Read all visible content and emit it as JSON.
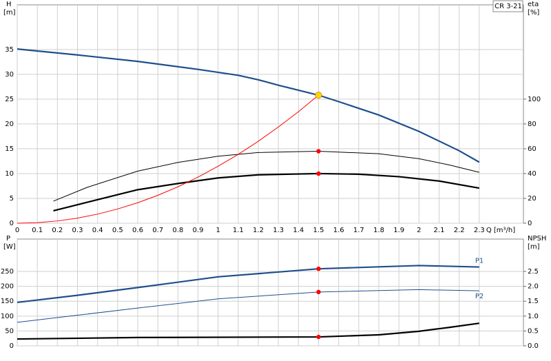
{
  "chart_data": [
    {
      "type": "line",
      "title": "CR 3-21",
      "ylabel": "H",
      "yunit": "[m]",
      "y2label": "eta",
      "y2unit": "[%]",
      "xlabel": "Q [m³/h]",
      "xlim": [
        0,
        2.52
      ],
      "xticks": [
        0,
        0.1,
        0.2,
        0.3,
        0.4,
        0.5,
        0.6,
        0.7,
        0.8,
        0.9,
        1.0,
        1.1,
        1.2,
        1.3,
        1.4,
        1.5,
        1.6,
        1.7,
        1.8,
        1.9,
        2.0,
        2.1,
        2.2,
        2.3
      ],
      "ylim": [
        0,
        44
      ],
      "yticks": [
        0,
        5,
        10,
        15,
        20,
        25,
        30,
        35
      ],
      "y2lim": [
        0,
        176
      ],
      "y2ticks": [
        0,
        20,
        40,
        60,
        80,
        100
      ],
      "grid": true,
      "series": [
        {
          "color": "#1f4e8c",
          "style": "bold",
          "x": [
            0,
            0.3,
            0.6,
            0.9,
            1.1,
            1.2,
            1.3,
            1.4,
            1.5,
            1.6,
            1.8,
            2.0,
            2.2,
            2.3
          ],
          "values": [
            35.1,
            33.9,
            32.6,
            31.0,
            29.8,
            28.9,
            27.8,
            26.8,
            25.8,
            24.5,
            21.8,
            18.5,
            14.6,
            12.3
          ]
        },
        {
          "color": "#000000",
          "style": "thin",
          "axis": "y2",
          "x": [
            0.18,
            0.35,
            0.6,
            0.8,
            1.0,
            1.2,
            1.5,
            1.8,
            2.0,
            2.15,
            2.3
          ],
          "values": [
            17.8,
            29,
            42,
            49,
            54,
            57,
            58,
            56,
            52,
            47,
            41
          ]
        },
        {
          "color": "#000000",
          "style": "bold",
          "axis": "y2",
          "x": [
            0.18,
            0.4,
            0.6,
            0.8,
            1.0,
            1.2,
            1.5,
            1.7,
            1.9,
            2.1,
            2.3
          ],
          "values": [
            10,
            19,
            27,
            32,
            36.5,
            39,
            40,
            39.5,
            37.5,
            34,
            28.3
          ]
        },
        {
          "color": "#ff0000",
          "style": "thin",
          "x": [
            0,
            0.1,
            0.2,
            0.3,
            0.4,
            0.5,
            0.6,
            0.7,
            0.8,
            0.9,
            1.0,
            1.1,
            1.2,
            1.3,
            1.4,
            1.5
          ],
          "values": [
            0,
            0.11,
            0.46,
            1.03,
            1.83,
            2.87,
            4.13,
            5.62,
            7.34,
            9.29,
            11.47,
            13.87,
            16.51,
            19.38,
            22.47,
            25.8
          ]
        }
      ],
      "markers": [
        {
          "x": 1.5,
          "y": 25.8,
          "color": "#ffd700"
        },
        {
          "x": 1.5,
          "y": 58,
          "axis": "y2",
          "color": "#ff0000"
        },
        {
          "x": 1.5,
          "y": 40,
          "axis": "y2",
          "color": "#ff0000"
        }
      ]
    },
    {
      "type": "line",
      "ylabel": "P",
      "yunit": "[W]",
      "y2label": "NPSH",
      "y2unit": "[m]",
      "xlim": [
        0,
        2.52
      ],
      "ylim": [
        0,
        359
      ],
      "yticks": [
        0,
        50,
        100,
        150,
        200,
        250
      ],
      "y2lim": [
        0,
        3.59
      ],
      "y2ticks": [
        {
          "value": 0,
          "label": "0.0"
        },
        0.5,
        {
          "value": 1,
          "label": "1.0"
        },
        1.5,
        {
          "value": 2,
          "label": "2.0"
        },
        2.5
      ],
      "grid": true,
      "series": [
        {
          "name": "P1",
          "color": "#1f4e8c",
          "style": "bold",
          "x": [
            0,
            0.3,
            0.6,
            1.0,
            1.5,
            2.0,
            2.3
          ],
          "values": [
            146,
            170,
            196,
            232,
            259,
            270,
            265
          ]
        },
        {
          "name": "P2",
          "color": "#1f4e8c",
          "style": "thin",
          "x": [
            0,
            0.3,
            0.6,
            1.0,
            1.5,
            2.0,
            2.3
          ],
          "values": [
            79,
            103,
            127,
            158,
            181,
            189,
            185
          ]
        },
        {
          "color": "#000000",
          "style": "bold",
          "axis": "y2",
          "x": [
            0,
            0.6,
            1.5,
            1.8,
            2.0,
            2.15,
            2.3
          ],
          "values": [
            0.23,
            0.28,
            0.3,
            0.37,
            0.49,
            0.62,
            0.76
          ]
        }
      ],
      "markers": [
        {
          "x": 1.5,
          "y": 259,
          "color": "#ff0000"
        },
        {
          "x": 1.5,
          "y": 181,
          "color": "#ff0000"
        },
        {
          "x": 1.5,
          "y": 0.3,
          "axis": "y2",
          "color": "#ff0000"
        }
      ]
    }
  ]
}
